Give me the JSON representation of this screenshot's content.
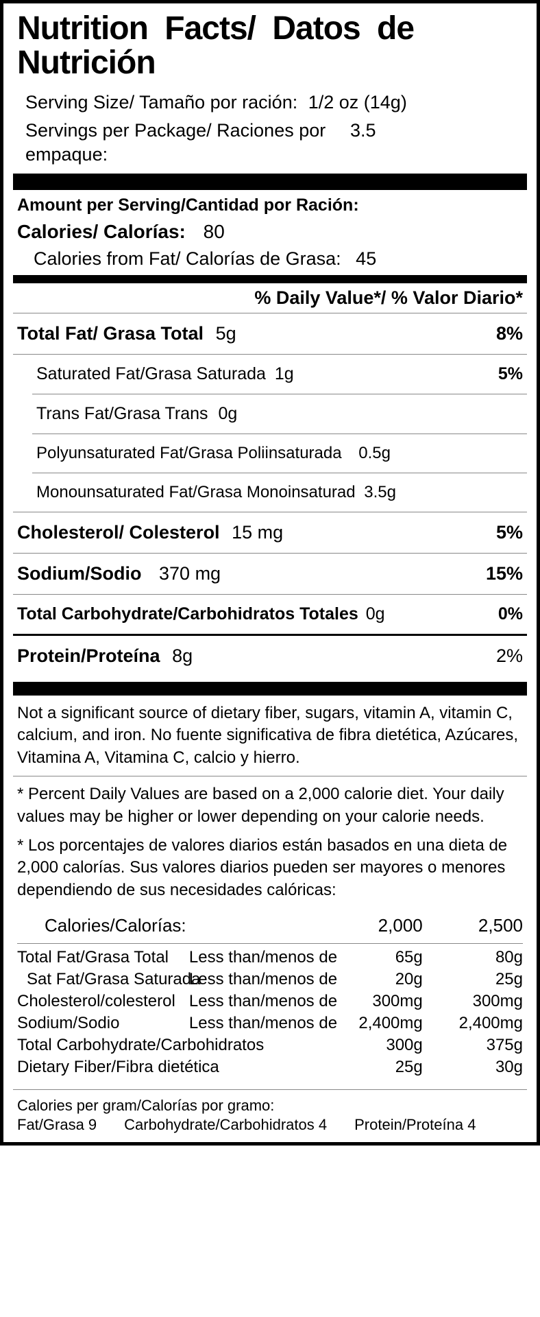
{
  "title": "Nutrition Facts/ Datos de Nutrición",
  "serving_size_label": "Serving Size/ Tamaño por ración:",
  "serving_size_value": "1/2 oz (14g)",
  "servings_per_label": "Servings per Package/ Raciones por empaque:",
  "servings_per_value": "3.5",
  "amount_per_serving_hdr": "Amount per Serving/Cantidad por Ración:",
  "calories_label": "Calories/ Calorías:",
  "calories_value": "80",
  "calfat_label": "Calories from Fat/ Calorías de Grasa:",
  "calfat_value": "45",
  "dv_header": "% Daily Value*/ % Valor Diario*",
  "rows": {
    "totalfat": {
      "name": "Total Fat/ Grasa Total",
      "amt": "5g",
      "pct": "8%"
    },
    "satfat": {
      "name": "Saturated Fat/Grasa Saturada",
      "amt": "1g",
      "pct": "5%"
    },
    "transfat": {
      "name": "Trans Fat/Grasa Trans",
      "amt": "0g",
      "pct": ""
    },
    "polyfat": {
      "name": "Polyunsaturated Fat/Grasa Poliinsaturada",
      "amt": "0.5g",
      "pct": ""
    },
    "monofat": {
      "name": "Monounsaturated Fat/Grasa Monoinsaturad",
      "amt": "3.5g",
      "pct": ""
    },
    "chol": {
      "name": "Cholesterol/ Colesterol",
      "amt": "15 mg",
      "pct": "5%"
    },
    "sodium": {
      "name": "Sodium/Sodio",
      "amt": "370 mg",
      "pct": "15%"
    },
    "carb": {
      "name": "Total Carbohydrate/Carbohidratos Totales",
      "amt": "0g",
      "pct": "0%"
    },
    "protein": {
      "name": "Protein/Proteína",
      "amt": "8g",
      "pct": "2%"
    }
  },
  "not_significant": "Not a significant source of dietary fiber, sugars, vitamin A, vitamin C, calcium, and iron. No fuente significativa de fibra dietética, Azúcares, Vitamina A, Vitamina C, calcio y hierro.",
  "pdv_en": "* Percent Daily Values are based on a 2,000 calorie diet. Your daily values may be higher or lower depending on your calorie needs.",
  "pdv_es": "* Los porcentajes de valores diarios están basados en una dieta de 2,000 calorías. Sus valores diarios pueden ser mayores o menores dependiendo de sus necesidades calóricas:",
  "ref": {
    "header": {
      "label": "Calories/Calorías:",
      "c2000": "2,000",
      "c2500": "2,500"
    },
    "rows": [
      {
        "name": "Total Fat/Grasa Total",
        "cond": "Less than/menos de",
        "a": "65g",
        "b": "80g",
        "indent": false
      },
      {
        "name": "Sat Fat/Grasa Saturada",
        "cond": "Less than/menos de",
        "a": "20g",
        "b": "25g",
        "indent": true
      },
      {
        "name": "Cholesterol/colesterol",
        "cond": "Less than/menos de",
        "a": "300mg",
        "b": "300mg",
        "indent": false
      },
      {
        "name": "Sodium/Sodio",
        "cond": "Less than/menos de",
        "a": "2,400mg",
        "b": "2,400mg",
        "indent": false
      },
      {
        "name": "Total Carbohydrate/Carbohidratos",
        "cond": "",
        "a": "300g",
        "b": "375g",
        "indent": false
      },
      {
        "name": "Dietary Fiber/Fibra dietética",
        "cond": "",
        "a": "25g",
        "b": "30g",
        "indent": false
      }
    ]
  },
  "cpg_header": "Calories per gram/Calorías por gramo:",
  "cpg": {
    "fat": "Fat/Grasa  9",
    "carb": "Carbohydrate/Carbohidratos  4",
    "prot": "Protein/Proteína  4"
  }
}
